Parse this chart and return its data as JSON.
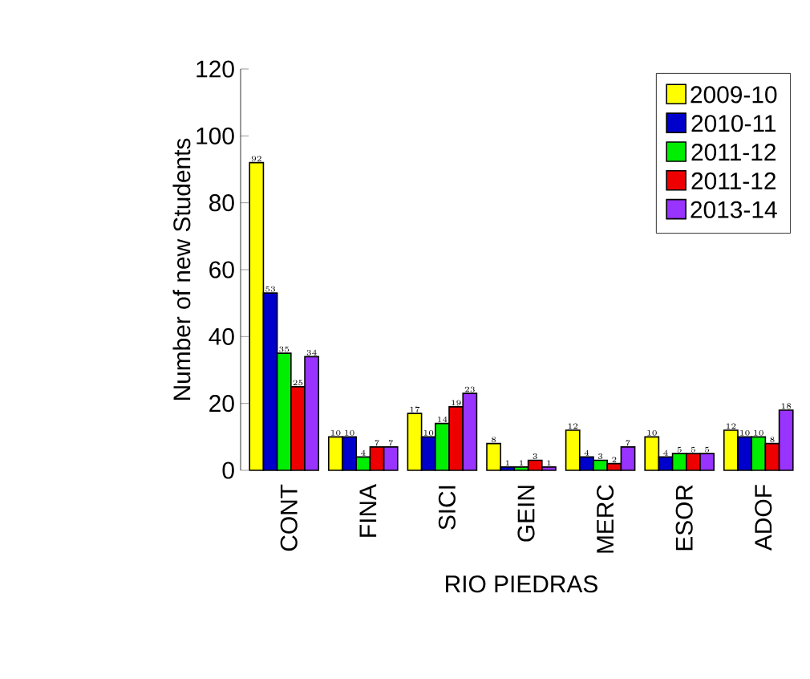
{
  "chart_data": {
    "type": "bar",
    "xlabel": "RIO PIEDRAS",
    "ylabel": "Number of new Students",
    "categories": [
      "CONT",
      "FINA",
      "SICI",
      "GEIN",
      "MERC",
      "ESOR",
      "ADOF"
    ],
    "series": [
      {
        "name": "2009-10",
        "color": "#ffff00",
        "values": [
          92,
          10,
          17,
          8,
          12,
          10,
          12
        ]
      },
      {
        "name": "2010-11",
        "color": "#0000cc",
        "values": [
          53,
          10,
          10,
          1,
          4,
          4,
          10
        ]
      },
      {
        "name": "2011-12",
        "color": "#00ee00",
        "values": [
          35,
          4,
          14,
          1,
          3,
          5,
          10
        ]
      },
      {
        "name": "2011-12",
        "color": "#ee0000",
        "values": [
          25,
          7,
          19,
          3,
          2,
          5,
          8
        ]
      },
      {
        "name": "2013-14",
        "color": "#9933ff",
        "values": [
          34,
          7,
          23,
          1,
          7,
          5,
          18
        ]
      }
    ],
    "ylim": [
      0,
      120
    ],
    "yticks": [
      0,
      20,
      40,
      60,
      80,
      100,
      120
    ],
    "data_labels": true,
    "legend": "top right",
    "grid": false
  }
}
